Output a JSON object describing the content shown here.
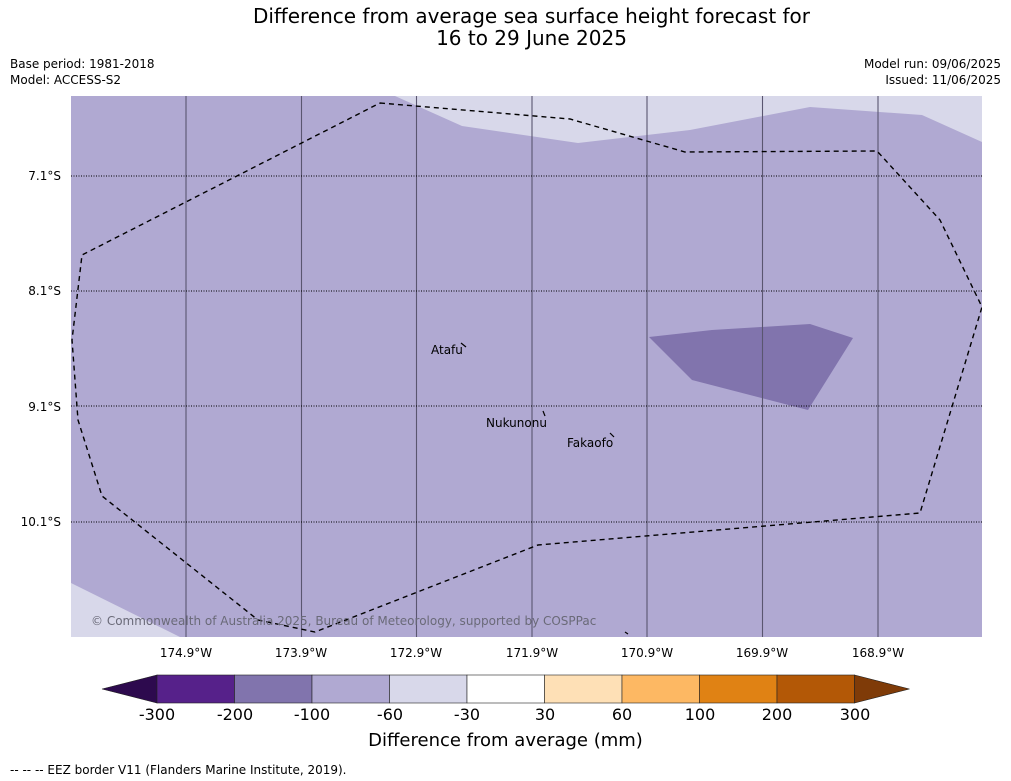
{
  "title": {
    "line1": "Difference from average sea surface height forecast for",
    "line2": "16 to 29 June 2025"
  },
  "meta": {
    "base_period": "Base period: 1981-2018",
    "model": "Model: ACCESS-S2",
    "model_run": "Model run: 09/06/2025",
    "issued": "Issued: 11/06/2025"
  },
  "map": {
    "lat_labels": [
      "7.1°S",
      "8.1°S",
      "9.1°S",
      "10.1°S"
    ],
    "lon_labels": [
      "174.9°W",
      "173.9°W",
      "172.9°W",
      "171.9°W",
      "170.9°W",
      "169.9°W",
      "168.9°W"
    ],
    "islands": [
      "Atafu",
      "Nukunonu",
      "Fakaofo"
    ],
    "copyright": "© Commonwealth of Australia 2025, Bureau of Meteorology, supported by COSPPac",
    "colors": {
      "minus_100_to_minus_60": "#b0a9d2",
      "minus_200_to_minus_100": "#8174ad",
      "minus_60_to_minus_30": "#d8d8ea"
    }
  },
  "colorbar": {
    "ticks": [
      "-300",
      "-200",
      "-100",
      "-60",
      "-30",
      "30",
      "60",
      "100",
      "200",
      "300"
    ],
    "colors": [
      "#2d0a4e",
      "#56218a",
      "#8174ad",
      "#b0a9d2",
      "#d8d8ea",
      "#ffffff",
      "#fee0b6",
      "#fdb863",
      "#e08214",
      "#b35806",
      "#7f3b08"
    ],
    "title": "Difference from average (mm)"
  },
  "footer": "--  --  -- EEZ border V11 (Flanders Marine Institute, 2019)."
}
